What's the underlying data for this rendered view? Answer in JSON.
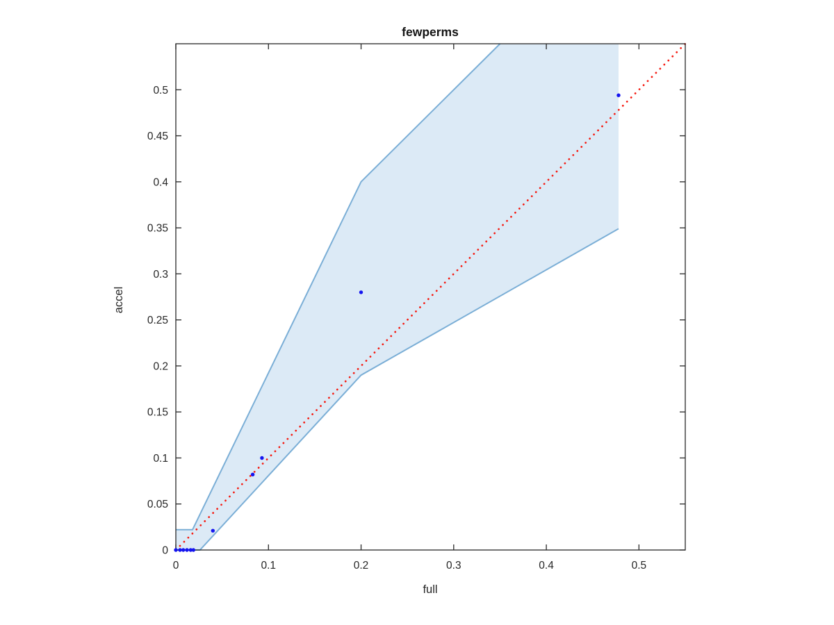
{
  "figure": {
    "title": "fewperms"
  },
  "chart_data": {
    "type": "scatter",
    "title": "fewperms",
    "xlabel": "full",
    "ylabel": "accel",
    "xlim": [
      0,
      0.55
    ],
    "ylim": [
      0,
      0.55
    ],
    "grid": false,
    "legend": "none",
    "background": "#ffffff",
    "axis_color": "#262626",
    "x_ticks": [
      0,
      0.1,
      0.2,
      0.3,
      0.4,
      0.5
    ],
    "x_tick_labels": [
      "0",
      "0.1",
      "0.2",
      "0.3",
      "0.4",
      "0.5"
    ],
    "y_ticks": [
      0,
      0.05,
      0.1,
      0.15,
      0.2,
      0.25,
      0.3,
      0.35,
      0.4,
      0.45,
      0.5
    ],
    "y_tick_labels": [
      "0",
      "0.05",
      "0.1",
      "0.15",
      "0.2",
      "0.25",
      "0.3",
      "0.35",
      "0.4",
      "0.45",
      "0.5"
    ],
    "series": [
      {
        "name": "confidence-band",
        "type": "band",
        "fill_color": "#dceaf6",
        "edge_color": "#7aaed6",
        "fill_polygon": [
          [
            0,
            0
          ],
          [
            0.026,
            0
          ],
          [
            0.2,
            0.19
          ],
          [
            0.478,
            0.349
          ],
          [
            0.478,
            0.55
          ],
          [
            0.35,
            0.55
          ],
          [
            0.2,
            0.4
          ],
          [
            0.018,
            0.022
          ],
          [
            0,
            0.022
          ]
        ],
        "lower_edge": [
          [
            0,
            0
          ],
          [
            0.026,
            0
          ],
          [
            0.2,
            0.19
          ],
          [
            0.478,
            0.349
          ]
        ],
        "upper_edge": [
          [
            0,
            0.022
          ],
          [
            0.018,
            0.022
          ],
          [
            0.2,
            0.4
          ],
          [
            0.35,
            0.55
          ]
        ]
      },
      {
        "name": "identity-line",
        "type": "dotted-line",
        "color": "#f5190f",
        "from": [
          0,
          0
        ],
        "to": [
          0.55,
          0.55
        ]
      },
      {
        "name": "observations",
        "type": "scatter",
        "color": "#1414f0",
        "marker": "dot",
        "points": [
          [
            0,
            0
          ],
          [
            0.0045,
            0
          ],
          [
            0.008,
            0
          ],
          [
            0.012,
            0
          ],
          [
            0.016,
            0
          ],
          [
            0.019,
            0
          ],
          [
            0.04,
            0.021
          ],
          [
            0.083,
            0.082
          ],
          [
            0.093,
            0.1
          ],
          [
            0.2,
            0.28
          ],
          [
            0.478,
            0.494
          ]
        ]
      }
    ]
  }
}
